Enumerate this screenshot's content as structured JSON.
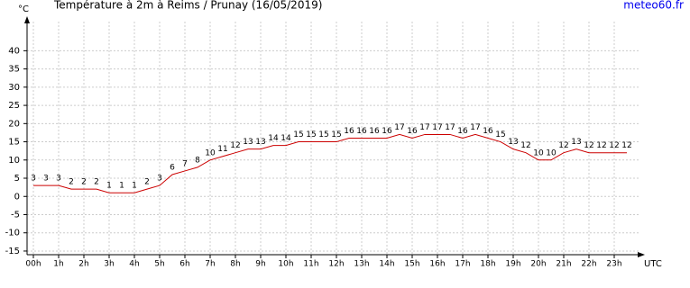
{
  "chart_data": {
    "type": "line",
    "title": "Température à 2m à Reims / Prunay (16/05/2019)",
    "source": "meteo60.fr",
    "y_label": "°C",
    "x_label": "UTC",
    "x": [
      0,
      0.5,
      1,
      1.5,
      2,
      2.5,
      3,
      3.5,
      4,
      4.5,
      5,
      5.5,
      6,
      6.5,
      7,
      7.5,
      8,
      8.5,
      9,
      9.5,
      10,
      10.5,
      11,
      11.5,
      12,
      12.5,
      13,
      13.5,
      14,
      14.5,
      15,
      15.5,
      16,
      16.5,
      17,
      17.5,
      18,
      18.5,
      19,
      19.5,
      20,
      20.5,
      21,
      21.5,
      22,
      22.5,
      23,
      23.5
    ],
    "series": [
      {
        "name": "Température",
        "color": "#cc0000",
        "values": [
          3,
          3,
          3,
          2,
          2,
          2,
          1,
          1,
          1,
          2,
          3,
          6,
          7,
          8,
          10,
          11,
          12,
          13,
          13,
          14,
          14,
          15,
          15,
          15,
          15,
          16,
          16,
          16,
          16,
          17,
          16,
          17,
          17,
          17,
          16,
          17,
          16,
          15,
          13,
          12,
          10,
          10,
          12,
          13,
          12,
          12,
          12,
          12
        ]
      }
    ],
    "xlim": [
      -0.25,
      24
    ],
    "xticks": [
      {
        "value": 0,
        "label": "00h"
      },
      {
        "value": 1,
        "label": "1h"
      },
      {
        "value": 2,
        "label": "2h"
      },
      {
        "value": 3,
        "label": "3h"
      },
      {
        "value": 4,
        "label": "4h"
      },
      {
        "value": 5,
        "label": "5h"
      },
      {
        "value": 6,
        "label": "6h"
      },
      {
        "value": 7,
        "label": "7h"
      },
      {
        "value": 8,
        "label": "8h"
      },
      {
        "value": 9,
        "label": "9h"
      },
      {
        "value": 10,
        "label": "10h"
      },
      {
        "value": 11,
        "label": "11h"
      },
      {
        "value": 12,
        "label": "12h"
      },
      {
        "value": 13,
        "label": "13h"
      },
      {
        "value": 14,
        "label": "14h"
      },
      {
        "value": 15,
        "label": "15h"
      },
      {
        "value": 16,
        "label": "16h"
      },
      {
        "value": 17,
        "label": "17h"
      },
      {
        "value": 18,
        "label": "18h"
      },
      {
        "value": 19,
        "label": "19h"
      },
      {
        "value": 20,
        "label": "20h"
      },
      {
        "value": 21,
        "label": "21h"
      },
      {
        "value": 22,
        "label": "22h"
      },
      {
        "value": 23,
        "label": "23h"
      }
    ],
    "ylim": [
      -16,
      48
    ],
    "yticks": [
      -15,
      -10,
      -5,
      0,
      5,
      10,
      15,
      20,
      25,
      30,
      35,
      40
    ],
    "grid": true
  }
}
